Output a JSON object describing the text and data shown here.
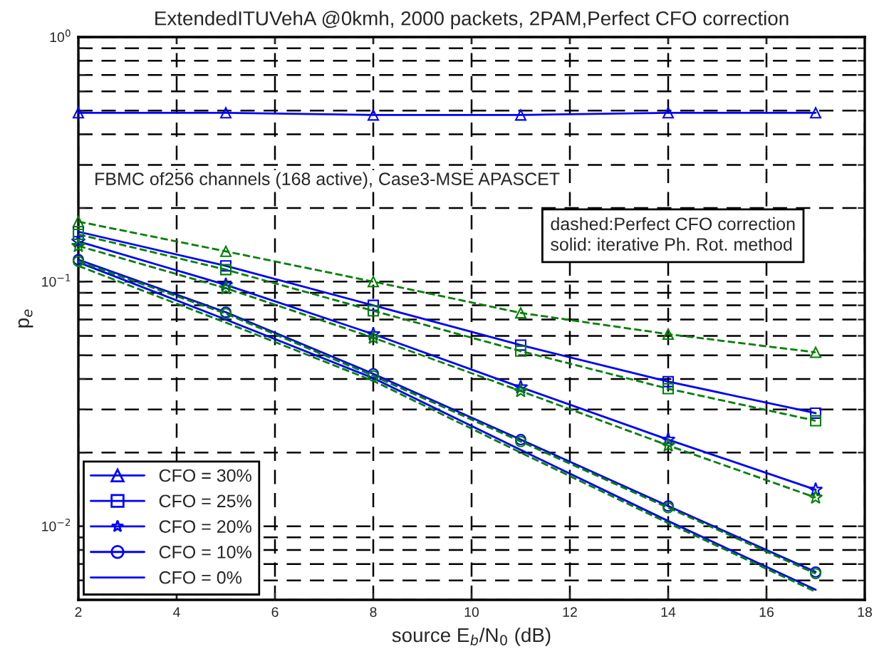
{
  "chart_data": {
    "type": "line",
    "title": "ExtendedITUVehA @0kmh, 2000 packets, 2PAM,Perfect CFO correction",
    "xlabel": "source E$_{b}$/N$_{0}$ (dB)",
    "ylabel": "p$_{e}$",
    "x": [
      2,
      5,
      8,
      11,
      14,
      17
    ],
    "series": [
      {
        "name": "CFO = 30%",
        "color": "#0000ff",
        "marker": "triangle",
        "line_style": "solid",
        "values": [
          0.49,
          0.49,
          0.48,
          0.48,
          0.49,
          0.49
        ]
      },
      {
        "name": "CFO = 25%",
        "color": "#0000ff",
        "marker": "square",
        "line_style": "solid",
        "values": [
          0.16,
          0.116,
          0.08,
          0.055,
          0.039,
          0.029
        ]
      },
      {
        "name": "CFO = 20%",
        "color": "#0000ff",
        "marker": "star",
        "line_style": "solid",
        "values": [
          0.146,
          0.097,
          0.061,
          0.037,
          0.0226,
          0.0141
        ]
      },
      {
        "name": "CFO = 10%",
        "color": "#0000ff",
        "marker": "circle",
        "line_style": "solid",
        "values": [
          0.123,
          0.075,
          0.042,
          0.0226,
          0.0121,
          0.0065
        ]
      },
      {
        "name": "CFO = 0%",
        "color": "#0000ff",
        "marker": "none",
        "line_style": "solid",
        "values": [
          0.12,
          0.07,
          0.0403,
          0.0205,
          0.0105,
          0.0055
        ]
      },
      {
        "color": "#008000",
        "marker": "triangle",
        "line_style": "dashed",
        "values": [
          0.176,
          0.133,
          0.1,
          0.0745,
          0.061,
          0.0514
        ]
      },
      {
        "color": "#008000",
        "marker": "square",
        "line_style": "dashed",
        "values": [
          0.156,
          0.112,
          0.076,
          0.052,
          0.0365,
          0.027
        ]
      },
      {
        "color": "#008000",
        "marker": "star",
        "line_style": "dashed",
        "values": [
          0.14,
          0.094,
          0.059,
          0.0357,
          0.0214,
          0.0131
        ]
      },
      {
        "color": "#008000",
        "marker": "circle",
        "line_style": "dashed",
        "values": [
          0.121,
          0.074,
          0.0412,
          0.0222,
          0.0119,
          0.0064
        ]
      },
      {
        "color": "#008000",
        "marker": "none",
        "line_style": "dashed",
        "values": [
          0.116,
          0.068,
          0.0393,
          0.02,
          0.0103,
          0.0054
        ]
      }
    ],
    "annotations": [
      "FBMC of256 channels (168 active), Case3-MSE APASCET",
      "dashed:Perfect CFO correction\nsolid: iterative Ph. Rot. method"
    ],
    "log": "y",
    "xlim": [
      2,
      18
    ],
    "xticks": [
      2,
      4,
      6,
      8,
      10,
      12,
      14,
      16,
      18
    ],
    "ylim": [
      0.005,
      1
    ],
    "yticks": [
      {
        "value": 0.005,
        "label": null
      },
      {
        "value": 0.006,
        "label": null
      },
      {
        "value": 0.007,
        "label": null
      },
      {
        "value": 0.008,
        "label": null
      },
      {
        "value": 0.009,
        "label": null
      },
      {
        "value": 0.01,
        "label": "10$^{−2}$"
      },
      {
        "value": 0.02,
        "label": null
      },
      {
        "value": 0.03,
        "label": null
      },
      {
        "value": 0.04,
        "label": null
      },
      {
        "value": 0.05,
        "label": null
      },
      {
        "value": 0.06,
        "label": null
      },
      {
        "value": 0.07,
        "label": null
      },
      {
        "value": 0.08,
        "label": null
      },
      {
        "value": 0.09,
        "label": null
      },
      {
        "value": 0.1,
        "label": "10$^{−1}$"
      },
      {
        "value": 0.2,
        "label": null
      },
      {
        "value": 0.3,
        "label": null
      },
      {
        "value": 0.4,
        "label": null
      },
      {
        "value": 0.5,
        "label": null
      },
      {
        "value": 0.6,
        "label": null
      },
      {
        "value": 0.7,
        "label": null
      },
      {
        "value": 0.8,
        "label": null
      },
      {
        "value": 0.9,
        "label": null
      },
      {
        "value": 1,
        "label": "10$^{0}$"
      }
    ],
    "grid": true,
    "legend": "bottom left"
  }
}
